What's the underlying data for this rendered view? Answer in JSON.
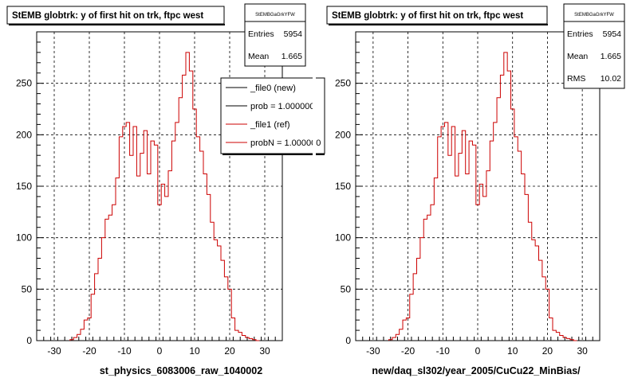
{
  "left": {
    "title": "StEMB globtrk: y of first hit on trk, ftpc west",
    "xlabel": "st_physics_6083006_raw_1040002",
    "stats": {
      "name": "StEMBGaGrkYFW",
      "rows": [
        {
          "label": "Entries",
          "value": "5954"
        },
        {
          "label": "Mean",
          "value": "1.665"
        }
      ]
    },
    "legend": [
      {
        "label": "_file0 (new)",
        "color": "#000000"
      },
      {
        "label": "prob = 1.000000",
        "color": "#000000"
      },
      {
        "label": "_file1 (ref)",
        "color": "#cc0000"
      },
      {
        "label": "probN = 1.000000",
        "color": "#cc0000"
      }
    ]
  },
  "right": {
    "title": "StEMB globtrk: y of first hit on trk, ftpc west",
    "xlabel": "new/daq_sl302/year_2005/CuCu22_MinBias/",
    "stats": {
      "name": "StEMBGaGrkYFW",
      "rows": [
        {
          "label": "Entries",
          "value": "5954"
        },
        {
          "label": "Mean",
          "value": "1.665"
        },
        {
          "label": "RMS",
          "value": "10.02"
        }
      ]
    }
  },
  "chart_data": {
    "type": "line",
    "xlim": [
      -35,
      35
    ],
    "ylim": [
      0,
      300
    ],
    "xticks": [
      -30,
      -20,
      -10,
      0,
      10,
      20,
      30
    ],
    "yticks": [
      0,
      50,
      100,
      150,
      200,
      250
    ],
    "grid": true,
    "series_color": "#cc0000",
    "x": [
      -25,
      -24,
      -23,
      -22,
      -21,
      -20,
      -19,
      -18,
      -17,
      -16,
      -15,
      -14,
      -13,
      -12,
      -11,
      -10,
      -9,
      -8,
      -7,
      -6,
      -5,
      -4,
      -3,
      -2,
      -1,
      0,
      1,
      2,
      3,
      4,
      5,
      6,
      7,
      8,
      9,
      10,
      11,
      12,
      13,
      14,
      15,
      16,
      17,
      18,
      19,
      20,
      21,
      22,
      23,
      24,
      25,
      26,
      27,
      28
    ],
    "values": [
      1,
      3,
      6,
      11,
      20,
      22,
      45,
      65,
      80,
      100,
      118,
      122,
      132,
      158,
      198,
      208,
      212,
      180,
      208,
      160,
      182,
      204,
      162,
      194,
      190,
      132,
      152,
      140,
      165,
      194,
      212,
      236,
      258,
      280,
      262,
      225,
      198,
      184,
      162,
      142,
      115,
      98,
      92,
      78,
      62,
      50,
      22,
      10,
      8,
      5,
      3,
      2,
      1,
      0
    ]
  }
}
